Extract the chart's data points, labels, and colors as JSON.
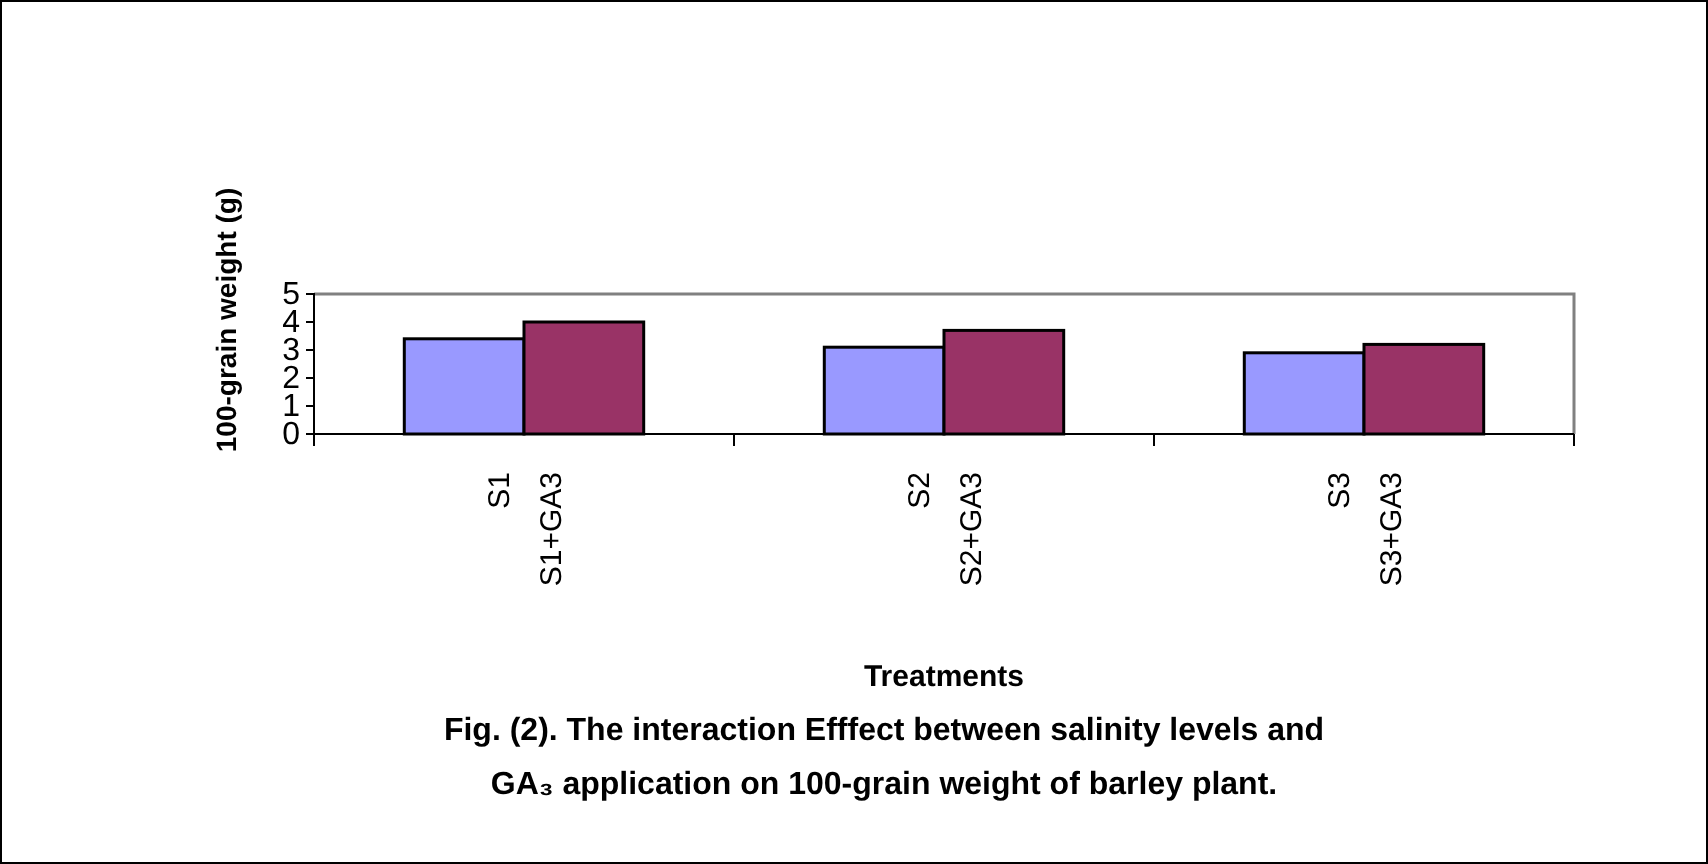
{
  "chart_data": {
    "type": "bar",
    "title": "Fig. (2). The interaction Efffect between salinity levels and\nGA₃ application on  100-grain weight of barley plant.",
    "xlabel": "Treatments",
    "ylabel": "100-grain weight (g)",
    "categories": [
      "S1\nS1+GA3",
      "S2\nS2+GA3",
      "S3\nS3+GA3"
    ],
    "series": [
      {
        "color": "#9999ff",
        "values": [
          3.4,
          3.1,
          2.9
        ]
      },
      {
        "color": "#993366",
        "values": [
          4.0,
          3.7,
          3.2
        ]
      }
    ],
    "ylim": [
      0,
      5
    ],
    "yticks": [
      0,
      1,
      2,
      3,
      4,
      5
    ],
    "grid": false
  }
}
